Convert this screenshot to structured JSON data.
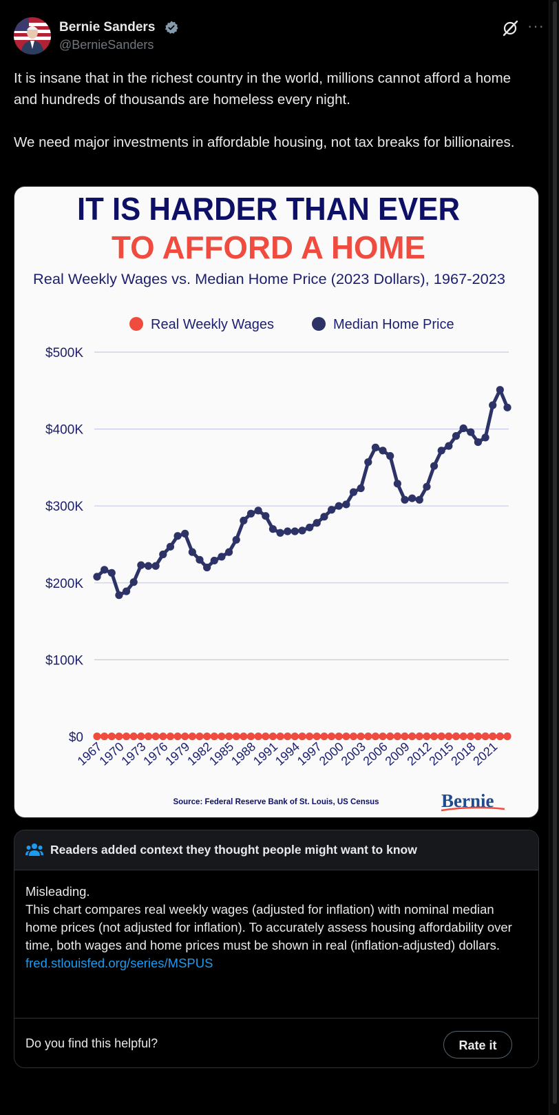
{
  "author": {
    "name": "Bernie Sanders",
    "handle": "@BernieSanders"
  },
  "tweet": {
    "paragraphs": [
      "It is insane that in the richest country in the world, millions cannot afford a home and hundreds of thousands are homeless every night.",
      "We need major investments in affordable housing, not tax breaks for billionaires."
    ]
  },
  "graphic": {
    "headline_line1": "IT IS HARDER THAN EVER",
    "headline_line2": "TO AFFORD A HOME",
    "source": "Source: Federal Reserve Bank of St. Louis, US Census",
    "logo_text": "Bernie",
    "colors": {
      "headline_navy": "#0e1066",
      "headline_red": "#ef4b3f",
      "wages": "#ef4b3f",
      "home_price": "#2d3366",
      "gridline": "#c7c9e3"
    }
  },
  "chart_data": {
    "type": "line",
    "title": "Real Weekly Wages vs. Median Home Price (2023 Dollars), 1967-2023",
    "legend_position": "top",
    "grid": true,
    "ylim": [
      0,
      500000
    ],
    "y_ticks": [
      {
        "value": 0,
        "label": "$0"
      },
      {
        "value": 100000,
        "label": "$100K"
      },
      {
        "value": 200000,
        "label": "$200K"
      },
      {
        "value": 300000,
        "label": "$300K"
      },
      {
        "value": 400000,
        "label": "$400K"
      },
      {
        "value": 500000,
        "label": "$500K"
      }
    ],
    "x_tick_labels": [
      "1967",
      "1970",
      "1973",
      "1976",
      "1979",
      "1982",
      "1985",
      "1988",
      "1991",
      "1994",
      "1997",
      "2000",
      "2003",
      "2006",
      "2009",
      "2012",
      "2015",
      "2018",
      "2021"
    ],
    "x": [
      1967,
      1968,
      1969,
      1970,
      1971,
      1972,
      1973,
      1974,
      1975,
      1976,
      1977,
      1978,
      1979,
      1980,
      1981,
      1982,
      1983,
      1984,
      1985,
      1986,
      1987,
      1988,
      1989,
      1990,
      1991,
      1992,
      1993,
      1994,
      1995,
      1996,
      1997,
      1998,
      1999,
      2000,
      2001,
      2002,
      2003,
      2004,
      2005,
      2006,
      2007,
      2008,
      2009,
      2010,
      2011,
      2012,
      2013,
      2014,
      2015,
      2016,
      2017,
      2018,
      2019,
      2020,
      2021,
      2022,
      2023
    ],
    "series": [
      {
        "name": "Real Weekly Wages",
        "color": "#ef4b3f",
        "values": [
          400,
          405,
          410,
          405,
          410,
          420,
          415,
          400,
          395,
          405,
          410,
          412,
          400,
          385,
          380,
          380,
          385,
          390,
          390,
          395,
          392,
          388,
          385,
          380,
          375,
          378,
          378,
          380,
          382,
          385,
          390,
          400,
          405,
          408,
          410,
          412,
          413,
          412,
          410,
          412,
          415,
          418,
          425,
          423,
          418,
          416,
          417,
          418,
          422,
          425,
          428,
          430,
          435,
          455,
          445,
          430,
          430
        ]
      },
      {
        "name": "Median Home Price",
        "color": "#2d3366",
        "values": [
          208000,
          217000,
          213000,
          184000,
          189000,
          201000,
          223000,
          222000,
          222000,
          237000,
          247000,
          261000,
          264000,
          240000,
          230000,
          220000,
          229000,
          234000,
          240000,
          256000,
          281000,
          290000,
          294000,
          287000,
          270000,
          265000,
          267000,
          267000,
          268000,
          272000,
          278000,
          286000,
          295000,
          300000,
          302000,
          318000,
          323000,
          357000,
          376000,
          372000,
          365000,
          329000,
          308000,
          310000,
          308000,
          325000,
          352000,
          372000,
          378000,
          391000,
          401000,
          396000,
          383000,
          389000,
          431000,
          451000,
          428000
        ]
      }
    ]
  },
  "community_note": {
    "header": "Readers added context they thought people might want to know",
    "lines": [
      "Misleading.",
      "This chart compares real weekly wages (adjusted for inflation) with nominal median home prices (not adjusted for inflation). To accurately assess housing affordability over time, both wages and home prices must be shown in real (inflation-adjusted) dollars."
    ],
    "link": "fred.stlouisfed.org/series/MSPUS",
    "helpful_prompt": "Do you find this helpful?",
    "rate_button": "Rate it"
  }
}
